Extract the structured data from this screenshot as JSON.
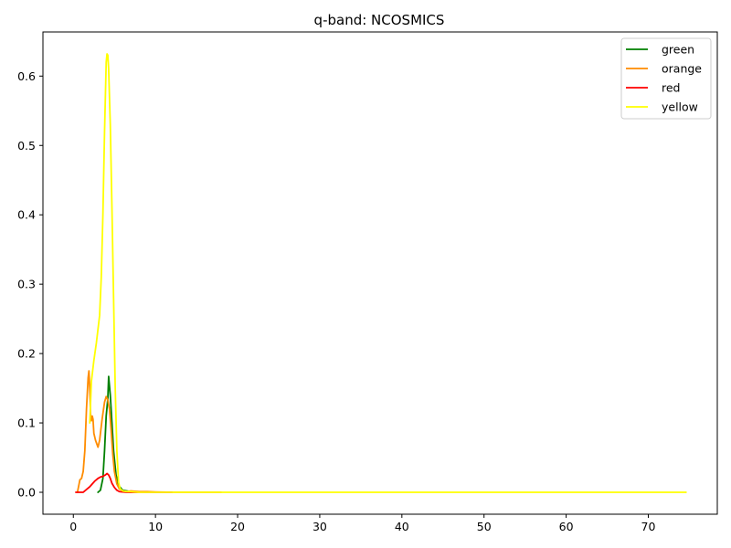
{
  "chart_data": {
    "type": "line",
    "title": "q-band: NCOSMICS",
    "xlabel": "",
    "ylabel": "",
    "xlim": [
      -3.7,
      78.4
    ],
    "ylim": [
      -0.0316,
      0.6636
    ],
    "xticks": [
      0,
      10,
      20,
      30,
      40,
      50,
      60,
      70
    ],
    "yticks": [
      0.0,
      0.1,
      0.2,
      0.3,
      0.4,
      0.5,
      0.6
    ],
    "ytick_labels": [
      "0.0",
      "0.1",
      "0.2",
      "0.3",
      "0.4",
      "0.5",
      "0.6"
    ],
    "grid": false,
    "legend_position": "top-right",
    "series": [
      {
        "name": "green",
        "color": "#008000",
        "x": [
          3.0,
          3.3,
          3.6,
          3.8,
          4.0,
          4.2,
          4.3,
          4.5,
          4.7,
          4.9,
          5.2,
          5.5,
          6.0,
          7.0,
          8.0,
          10.0,
          12.0
        ],
        "y": [
          0.0,
          0.003,
          0.02,
          0.06,
          0.11,
          0.135,
          0.167,
          0.14,
          0.1,
          0.06,
          0.025,
          0.01,
          0.003,
          0.001,
          0.0005,
          0.0,
          0.0
        ]
      },
      {
        "name": "orange",
        "color": "#ff8c00",
        "x": [
          0.5,
          0.8,
          1.0,
          1.2,
          1.4,
          1.6,
          1.8,
          1.9,
          2.0,
          2.1,
          2.2,
          2.3,
          2.4,
          2.5,
          2.7,
          3.0,
          3.2,
          3.5,
          3.8,
          4.0,
          4.2,
          4.4,
          4.6,
          4.8,
          5.0,
          5.3,
          5.6,
          6.0,
          6.5,
          7.0,
          8.0,
          9.0,
          10.0,
          12.0,
          15.0,
          18.0
        ],
        "y": [
          0.0,
          0.018,
          0.02,
          0.03,
          0.06,
          0.12,
          0.165,
          0.175,
          0.15,
          0.11,
          0.103,
          0.11,
          0.105,
          0.085,
          0.075,
          0.065,
          0.075,
          0.105,
          0.13,
          0.138,
          0.133,
          0.12,
          0.09,
          0.055,
          0.03,
          0.012,
          0.005,
          0.002,
          0.001,
          0.002,
          0.001,
          0.001,
          0.0005,
          0.0,
          0.0,
          0.0
        ]
      },
      {
        "name": "red",
        "color": "#ff0000",
        "x": [
          0.3,
          0.8,
          1.2,
          1.5,
          1.8,
          2.0,
          2.3,
          2.6,
          3.0,
          3.3,
          3.6,
          3.9,
          4.1,
          4.3,
          4.5,
          4.7,
          5.0,
          5.3,
          5.6,
          6.0,
          6.5,
          7.0,
          8.0,
          10.0,
          12.0
        ],
        "y": [
          0.0,
          0.0,
          0.0,
          0.003,
          0.006,
          0.008,
          0.012,
          0.016,
          0.02,
          0.022,
          0.023,
          0.025,
          0.027,
          0.025,
          0.02,
          0.013,
          0.007,
          0.003,
          0.001,
          0.0005,
          0.0,
          0.0,
          0.0,
          0.0,
          0.0
        ]
      },
      {
        "name": "yellow",
        "color": "#ffff00",
        "x": [
          2.0,
          2.2,
          2.5,
          2.8,
          3.0,
          3.2,
          3.4,
          3.6,
          3.8,
          4.0,
          4.1,
          4.2,
          4.3,
          4.5,
          4.7,
          4.9,
          5.1,
          5.3,
          5.5,
          5.7,
          6.0,
          6.5,
          7.0,
          7.5,
          8.0,
          9.0,
          10.0,
          12.0,
          15.0,
          20.0,
          30.0,
          40.0,
          50.0,
          60.0,
          70.0,
          74.6
        ],
        "y": [
          0.1,
          0.16,
          0.19,
          0.215,
          0.235,
          0.255,
          0.31,
          0.4,
          0.52,
          0.62,
          0.632,
          0.63,
          0.61,
          0.53,
          0.41,
          0.28,
          0.15,
          0.06,
          0.015,
          0.005,
          0.002,
          0.001,
          0.001,
          0.0005,
          0.0,
          0.0,
          0.0,
          0.0,
          0.0,
          0.0,
          0.0,
          0.0,
          0.0,
          0.0,
          0.0,
          0.0
        ]
      }
    ]
  }
}
